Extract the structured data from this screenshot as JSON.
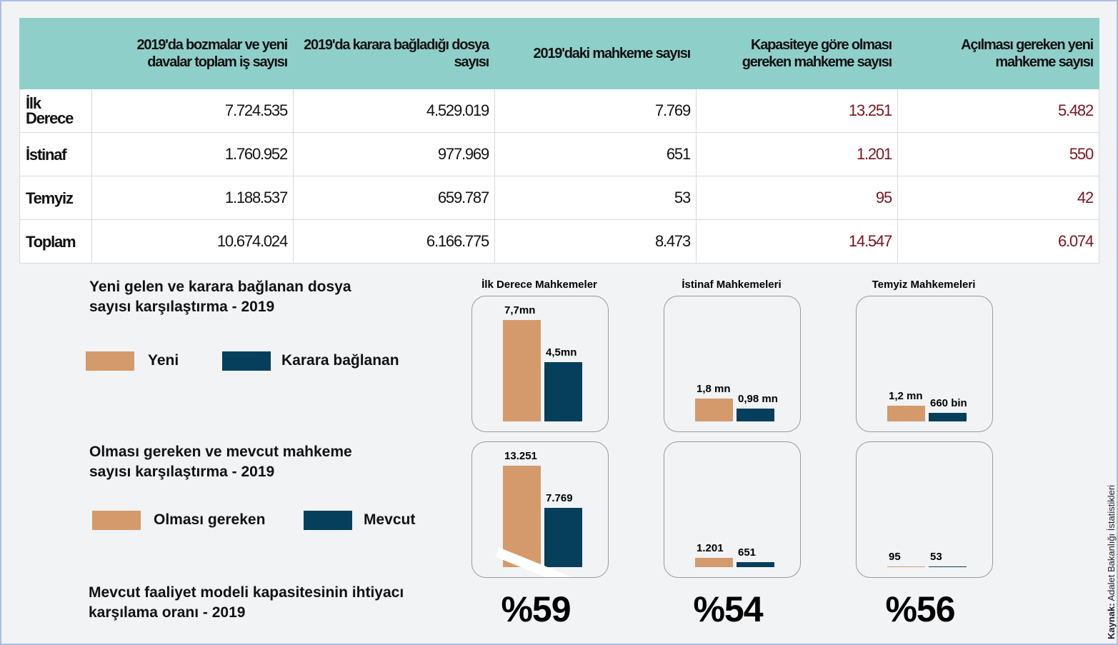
{
  "table": {
    "header": [
      "2019'da bozmalar ve yeni davalar toplam iş sayısı",
      "2019'da karara bağladığı dosya sayısı",
      "2019'daki mahkeme sayısı",
      "Kapasiteye göre olması gereken mahkeme sayısı",
      "Açılması gereken yeni mahkeme sayısı"
    ],
    "rows": [
      {
        "label": "İlk Derece",
        "cells": [
          "7.724.535",
          "4.529.019",
          "7.769",
          "13.251",
          "5.482"
        ]
      },
      {
        "label": "İstinaf",
        "cells": [
          "1.760.952",
          "977.969",
          "651",
          "1.201",
          "550"
        ]
      },
      {
        "label": "Temyiz",
        "cells": [
          "1.188.537",
          "659.787",
          "53",
          "95",
          "42"
        ]
      },
      {
        "label": "Toplam",
        "cells": [
          "10.674.024",
          "6.166.775",
          "8.473",
          "14.547",
          "6.074"
        ]
      }
    ]
  },
  "courts": [
    "İlk Derece Mahkemeler",
    "İstinaf Mahkemeleri",
    "Temyiz Mahkemeleri"
  ],
  "comparisons": [
    {
      "title": "Yeni gelen ve karara bağlanan dosya sayısı karşılaştırma - 2019",
      "legend": [
        {
          "name": "Yeni",
          "color": "#d49a6c"
        },
        {
          "name": "Karara bağlanan",
          "color": "#053f5c"
        }
      ],
      "groups": [
        {
          "values": [
            7724535,
            4529019
          ],
          "value_labels": [
            "7,7mn",
            "4,5mn"
          ]
        },
        {
          "values": [
            1760952,
            977969
          ],
          "value_labels": [
            "1,8 mn",
            "0,98 mn"
          ]
        },
        {
          "values": [
            1188537,
            659787
          ],
          "value_labels": [
            "1,2 mn",
            "660 bin"
          ]
        }
      ]
    },
    {
      "title": "Olması gereken ve mevcut mahkeme sayısı karşılaştırma - 2019",
      "legend": [
        {
          "name": "Olması gereken",
          "color": "#d49a6c"
        },
        {
          "name": "Mevcut",
          "color": "#053f5c"
        }
      ],
      "groups": [
        {
          "values": [
            13251,
            7769
          ],
          "value_labels": [
            "13.251",
            "7.769"
          ]
        },
        {
          "values": [
            1201,
            651
          ],
          "value_labels": [
            "1.201",
            "651"
          ]
        },
        {
          "values": [
            95,
            53
          ]
        }
      ]
    }
  ],
  "ratio": {
    "title": "Mevcut faaliyet modeli kapasitesinin ihtiyacı karşılama oranı - 2019",
    "values": [
      "%59",
      "%54",
      "%56"
    ]
  },
  "source": {
    "label": "Kaynak:",
    "text": "Adalet Bakanlığı İstatistikleri"
  }
}
